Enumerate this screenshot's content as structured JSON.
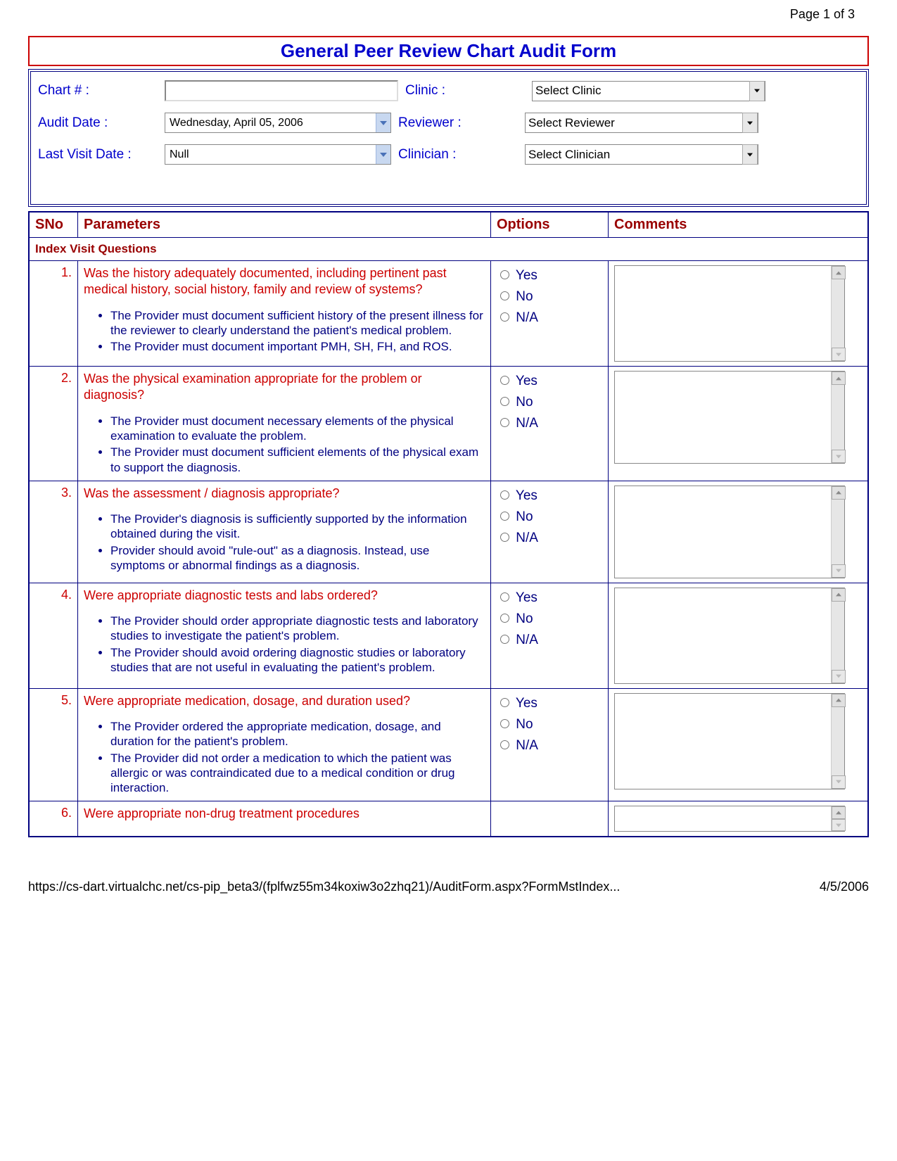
{
  "page_number": "Page 1 of 3",
  "title": "General Peer Review Chart Audit Form",
  "header": {
    "chart_label": "Chart # :",
    "chart_value": "",
    "clinic_label": "Clinic :",
    "clinic_value": "Select Clinic",
    "audit_date_label": "Audit Date :",
    "audit_date_value": "Wednesday, April 05, 2006",
    "reviewer_label": "Reviewer :",
    "reviewer_value": "Select Reviewer",
    "last_visit_label": "Last Visit Date :",
    "last_visit_value": "Null",
    "clinician_label": "Clinician :",
    "clinician_value": "Select Clinician"
  },
  "table_headers": {
    "sno": "SNo",
    "parameters": "Parameters",
    "options": "Options",
    "comments": "Comments"
  },
  "section_title": "Index Visit Questions",
  "options_labels": {
    "yes": "Yes",
    "no": "No",
    "na": "N/A"
  },
  "questions": [
    {
      "sno": "1.",
      "q": "Was the history adequately documented, including pertinent past medical history, social history, family and review of systems?",
      "bullets": [
        "The Provider must document sufficient history of the present illness for the reviewer to clearly understand the patient's medical problem.",
        "The Provider must document important PMH, SH, FH, and ROS."
      ]
    },
    {
      "sno": "2.",
      "q": "Was the physical examination appropriate for the problem or diagnosis?",
      "bullets": [
        "The Provider must document necessary elements of the physical examination to evaluate the problem.",
        "The Provider must document sufficient elements of the physical exam to support the diagnosis."
      ]
    },
    {
      "sno": "3.",
      "q": "Was the assessment / diagnosis appropriate?",
      "bullets": [
        "The Provider's diagnosis is sufficiently supported by the information obtained during the visit.",
        "Provider should avoid \"rule-out\" as a diagnosis. Instead, use symptoms or abnormal findings as a diagnosis."
      ]
    },
    {
      "sno": "4.",
      "q": "Were appropriate diagnostic tests and labs ordered?",
      "bullets": [
        "The Provider should order appropriate diagnostic tests and laboratory studies to investigate the patient's problem.",
        "The Provider should avoid ordering diagnostic studies or laboratory studies that are not useful in evaluating the patient's problem."
      ]
    },
    {
      "sno": "5.",
      "q": "Were appropriate medication, dosage, and duration used?",
      "bullets": [
        "The Provider ordered the appropriate medication, dosage, and duration for the patient's problem.",
        "The Provider did not order a medication to which the patient was allergic or was contraindicated due to a medical condition or drug interaction."
      ]
    },
    {
      "sno": "6.",
      "q": "Were appropriate non-drug treatment procedures",
      "bullets": []
    }
  ],
  "footer": {
    "url": "https://cs-dart.virtualchc.net/cs-pip_beta3/(fplfwz55m34koxiw3o2zhq21)/AuditForm.aspx?FormMstIndex...",
    "date": "4/5/2006"
  }
}
